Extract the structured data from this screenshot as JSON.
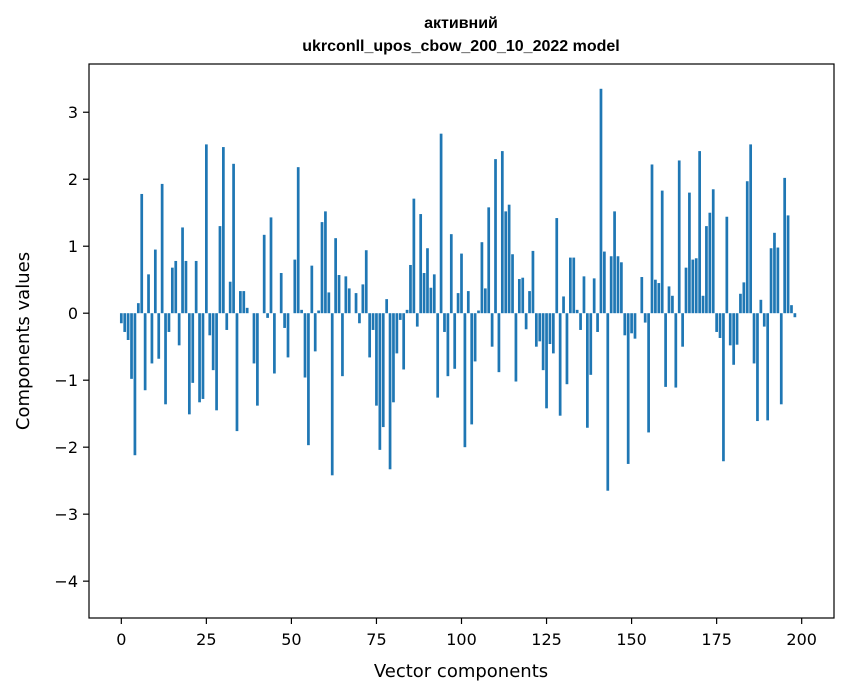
{
  "chart_data": {
    "type": "bar",
    "title_line1": "активний",
    "title_line2": "ukrconll_upos_cbow_200_10_2022 model",
    "xlabel": "Vector components",
    "ylabel": "Components values",
    "xlim": [
      -9.5,
      209.5
    ],
    "ylim": [
      -4.55,
      3.72
    ],
    "xticks": [
      0,
      25,
      50,
      75,
      100,
      125,
      150,
      175,
      200
    ],
    "xtick_labels": [
      "0",
      "25",
      "50",
      "75",
      "100",
      "125",
      "150",
      "175",
      "200"
    ],
    "yticks": [
      3,
      2,
      1,
      0,
      -1,
      -2,
      -3,
      -4
    ],
    "ytick_labels": [
      "3",
      "2",
      "1",
      "0",
      "−1",
      "−2",
      "−3",
      "−4"
    ],
    "bar_color": "#1f77b4",
    "grid": false,
    "values": [
      -0.15,
      -0.28,
      -0.4,
      -0.98,
      -2.12,
      0.15,
      1.78,
      -1.15,
      0.58,
      -0.75,
      0.95,
      -0.68,
      1.93,
      -1.36,
      -0.28,
      0.68,
      0.78,
      -0.48,
      1.28,
      0.78,
      -1.51,
      -1.04,
      0.78,
      -1.33,
      -1.28,
      2.52,
      -0.33,
      -0.85,
      -1.45,
      1.3,
      2.48,
      -0.25,
      0.47,
      2.23,
      -1.76,
      0.33,
      0.33,
      0.08,
      0.0,
      -0.75,
      -1.38,
      0.0,
      1.17,
      -0.07,
      1.43,
      -0.9,
      0.0,
      0.6,
      -0.22,
      -0.66,
      0.0,
      0.8,
      2.18,
      0.05,
      -0.96,
      -1.97,
      0.71,
      -0.57,
      0.04,
      1.36,
      1.52,
      0.31,
      -2.42,
      1.12,
      0.57,
      -0.94,
      0.55,
      0.37,
      0.0,
      0.3,
      -0.15,
      0.43,
      0.94,
      -0.66,
      -0.25,
      -1.38,
      -2.04,
      -1.7,
      0.21,
      -2.33,
      -1.33,
      -0.6,
      -0.1,
      -0.84,
      0.05,
      0.72,
      1.71,
      -0.2,
      1.48,
      0.6,
      0.97,
      0.38,
      0.58,
      -1.26,
      2.68,
      -0.28,
      -0.94,
      1.18,
      -0.83,
      0.3,
      0.89,
      -2.0,
      0.33,
      -1.66,
      -0.72,
      0.04,
      1.06,
      0.37,
      1.58,
      -0.5,
      2.3,
      -0.88,
      2.42,
      1.52,
      1.62,
      0.88,
      -1.02,
      0.51,
      0.53,
      -0.24,
      0.33,
      0.93,
      -0.5,
      -0.42,
      -0.85,
      -1.42,
      -0.46,
      -0.6,
      1.42,
      -1.53,
      0.25,
      -1.06,
      0.83,
      0.83,
      0.05,
      -0.25,
      0.55,
      -1.71,
      -0.92,
      0.52,
      -0.28,
      3.35,
      0.92,
      -2.65,
      0.85,
      1.52,
      0.85,
      0.76,
      -0.33,
      -2.25,
      -0.3,
      -0.38,
      0.0,
      0.54,
      -0.14,
      -1.78,
      2.22,
      0.5,
      0.45,
      1.83,
      -1.1,
      0.4,
      0.26,
      -1.11,
      2.28,
      -0.5,
      0.68,
      1.8,
      0.8,
      0.82,
      2.42,
      0.26,
      1.3,
      1.5,
      1.85,
      -0.28,
      -0.37,
      -2.21,
      1.44,
      -0.48,
      -0.77,
      -0.47,
      0.29,
      0.46,
      1.97,
      2.52,
      -0.75,
      -1.61,
      0.2,
      -0.2,
      -1.6,
      0.97,
      1.2,
      0.98,
      -1.36,
      2.02,
      1.46,
      0.12,
      -0.06
    ]
  }
}
